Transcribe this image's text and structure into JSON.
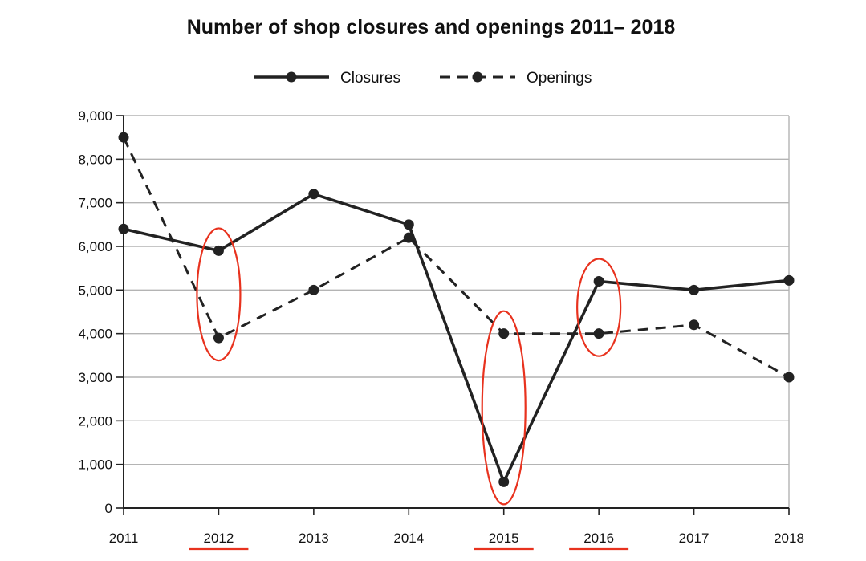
{
  "chart_data": {
    "type": "line",
    "title": "Number of shop closures and openings 2011– 2018",
    "xlabel": "",
    "ylabel": "",
    "categories": [
      "2011",
      "2012",
      "2013",
      "2014",
      "2015",
      "2016",
      "2017",
      "2018"
    ],
    "ylim": [
      0,
      9000
    ],
    "y_ticks": [
      "0",
      "1,000",
      "2,000",
      "3,000",
      "4,000",
      "5,000",
      "6,000",
      "7,000",
      "8,000",
      "9,000"
    ],
    "y_tick_values": [
      0,
      1000,
      2000,
      3000,
      4000,
      5000,
      6000,
      7000,
      8000,
      9000
    ],
    "grid": true,
    "legend_position": "top-center",
    "series": [
      {
        "name": "Closures",
        "line_style": "solid",
        "values": [
          6400,
          5900,
          7200,
          6500,
          600,
          5200,
          5000,
          5220
        ]
      },
      {
        "name": "Openings",
        "line_style": "dashed",
        "values": [
          8500,
          3900,
          5000,
          6200,
          4000,
          4000,
          4200,
          3000
        ]
      }
    ],
    "annotations": {
      "highlighted_years": [
        "2012",
        "2015",
        "2016"
      ],
      "circles_color": "#e8321e",
      "underline_color": "#e8321e"
    },
    "colors": {
      "line": "#222222",
      "grid": "#b4b4b4",
      "axis": "#222222"
    }
  }
}
